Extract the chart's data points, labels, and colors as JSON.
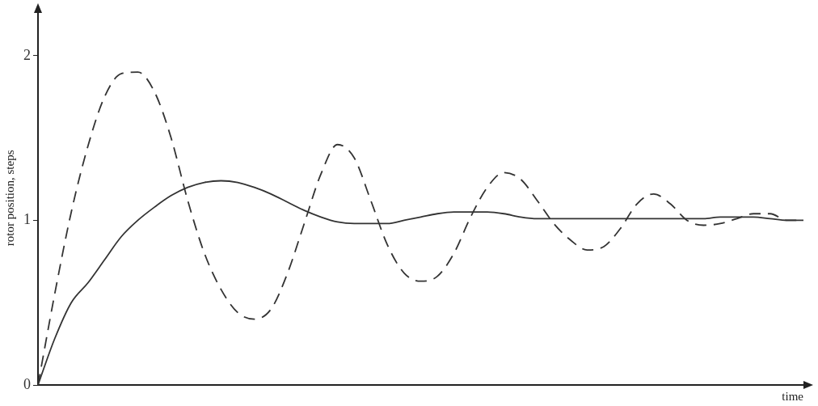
{
  "chart_data": {
    "type": "line",
    "xlabel": "time",
    "ylabel": "rotor position, steps",
    "categories": [
      null,
      null,
      null,
      null,
      null,
      null,
      null,
      null,
      null,
      null,
      null,
      null,
      null,
      null,
      null,
      null,
      null,
      null,
      null,
      null,
      null,
      null,
      null,
      null,
      null,
      null,
      null,
      null,
      null,
      null,
      null,
      null,
      null,
      null,
      null,
      null,
      null,
      null,
      null,
      null,
      null,
      null,
      null,
      null,
      null,
      null,
      null
    ],
    "series": [
      {
        "color": "#333333",
        "line_style": "solid",
        "values": [
          0,
          0.28,
          0.5,
          0.62,
          0.76,
          0.9,
          1.0,
          1.08,
          1.15,
          1.2,
          1.23,
          1.24,
          1.23,
          1.2,
          1.16,
          1.11,
          1.06,
          1.02,
          0.99,
          0.98,
          0.98,
          0.98,
          1.0,
          1.02,
          1.04,
          1.05,
          1.05,
          1.05,
          1.04,
          1.02,
          1.01,
          1.01,
          1.01,
          1.01,
          1.01,
          1.01,
          1.01,
          1.01,
          1.01,
          1.01,
          1.01,
          1.02,
          1.02,
          1.02,
          1.01,
          1.0,
          1.0
        ]
      },
      {
        "color": "#333333",
        "line_style": "dashed",
        "values": [
          0,
          0.55,
          1.05,
          1.45,
          1.75,
          1.89,
          1.9,
          1.78,
          1.5,
          1.12,
          0.8,
          0.58,
          0.44,
          0.4,
          0.46,
          0.68,
          0.98,
          1.28,
          1.46,
          1.38,
          1.12,
          0.85,
          0.68,
          0.63,
          0.66,
          0.8,
          1.02,
          1.2,
          1.29,
          1.25,
          1.12,
          0.98,
          0.88,
          0.82,
          0.84,
          0.95,
          1.1,
          1.16,
          1.1,
          1.0,
          0.97,
          0.98,
          1.01,
          1.04,
          1.04,
          1.0,
          1.0
        ]
      }
    ],
    "ylim": [
      0,
      2.27
    ],
    "yticks": [
      0,
      1,
      2
    ],
    "tick_labels": "y",
    "grid": false,
    "legend": false,
    "marker": "none"
  }
}
